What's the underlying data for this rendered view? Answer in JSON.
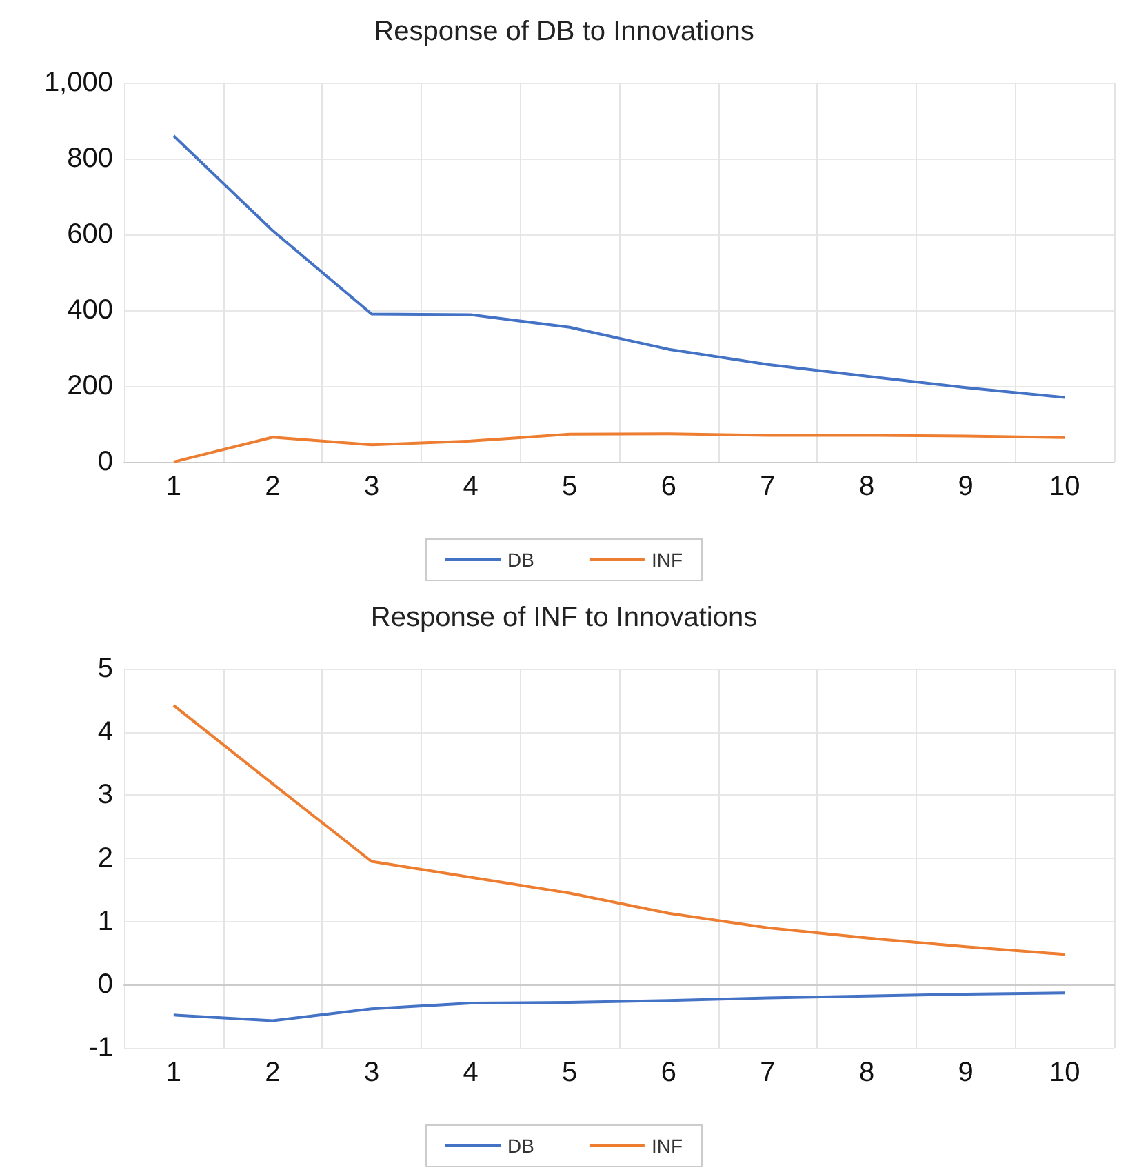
{
  "chart_data": [
    {
      "type": "line",
      "title": "Response of DB to Innovations",
      "categories": [
        "1",
        "2",
        "3",
        "4",
        "5",
        "6",
        "7",
        "8",
        "9",
        "10"
      ],
      "series": [
        {
          "name": "DB",
          "color": "#4472c4",
          "values": [
            860,
            610,
            390,
            388,
            355,
            297,
            257,
            226,
            196,
            170
          ]
        },
        {
          "name": "INF",
          "color": "#ed7d31",
          "values": [
            0,
            65,
            45,
            55,
            73,
            74,
            70,
            70,
            68,
            64
          ]
        }
      ],
      "ylim": [
        0,
        1000
      ],
      "yticks": [
        0,
        200,
        400,
        600,
        800,
        {
          "value": 1000,
          "label": "1,000"
        }
      ],
      "grid": true,
      "legend": "bottom",
      "marker": "none"
    },
    {
      "type": "line",
      "title": "Response of INF to Innovations",
      "categories": [
        "1",
        "2",
        "3",
        "4",
        "5",
        "6",
        "7",
        "8",
        "9",
        "10"
      ],
      "series": [
        {
          "name": "DB",
          "color": "#4472c4",
          "values": [
            -0.48,
            -0.57,
            -0.38,
            -0.29,
            -0.28,
            -0.25,
            -0.21,
            -0.18,
            -0.15,
            -0.13
          ]
        },
        {
          "name": "INF",
          "color": "#ed7d31",
          "values": [
            4.42,
            3.18,
            1.95,
            1.7,
            1.45,
            1.13,
            0.9,
            0.74,
            0.6,
            0.48
          ]
        }
      ],
      "ylim": [
        -1,
        5
      ],
      "yticks": [
        -1,
        0,
        1,
        2,
        3,
        4,
        5
      ],
      "grid": true,
      "legend": "bottom",
      "marker": "none"
    }
  ]
}
